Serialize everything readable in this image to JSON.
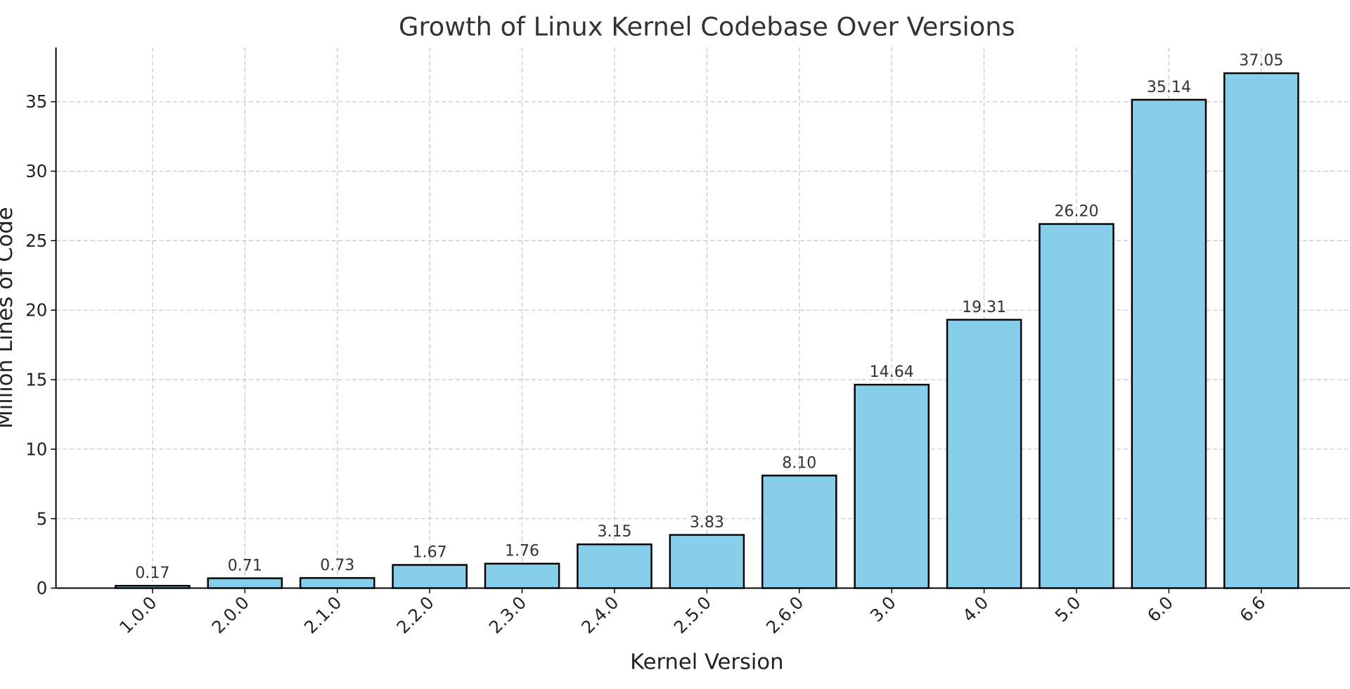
{
  "chart_data": {
    "type": "bar",
    "title": "Growth of Linux Kernel Codebase Over Versions",
    "xlabel": "Kernel Version",
    "ylabel": "Million Lines of Code",
    "categories": [
      "1.0.0",
      "2.0.0",
      "2.1.0",
      "2.2.0",
      "2.3.0",
      "2.4.0",
      "2.5.0",
      "2.6.0",
      "3.0",
      "4.0",
      "5.0",
      "6.0",
      "6.6"
    ],
    "values": [
      0.17,
      0.71,
      0.73,
      1.67,
      1.76,
      3.15,
      3.83,
      8.1,
      14.64,
      19.31,
      26.2,
      35.14,
      37.05
    ],
    "data_labels": [
      "0.17",
      "0.71",
      "0.73",
      "1.67",
      "1.76",
      "3.15",
      "3.83",
      "8.10",
      "14.64",
      "19.31",
      "26.20",
      "35.14",
      "37.05"
    ],
    "yticks": [
      0,
      5,
      10,
      15,
      20,
      25,
      30,
      35
    ],
    "ylim": [
      0,
      38.9
    ],
    "grid": true,
    "bar_color": "#87CEEB",
    "edge_color": "#000000"
  }
}
